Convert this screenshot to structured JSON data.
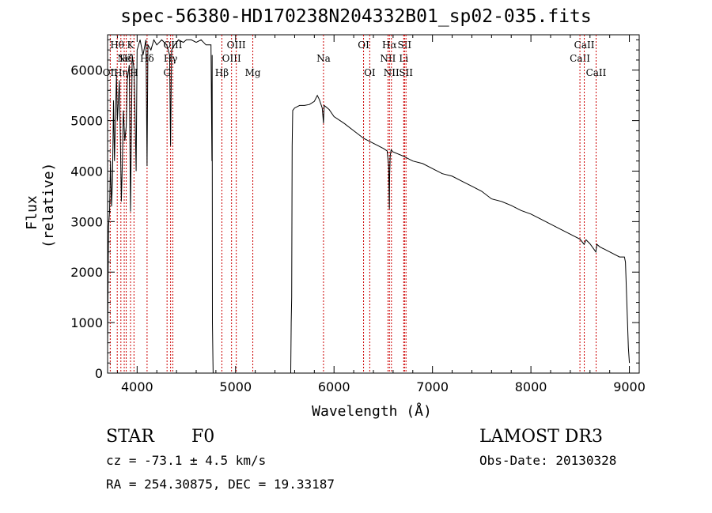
{
  "chart_data": {
    "type": "line",
    "title": "spec-56380-HD170238N204332B01_sp02-035.fits",
    "xlabel": "Wavelength (Å)",
    "ylabel": "Flux (relative)",
    "xlim": [
      3700,
      9100
    ],
    "ylim": [
      0,
      6700
    ],
    "xticks": [
      4000,
      5000,
      6000,
      7000,
      8000,
      9000
    ],
    "yticks": [
      0,
      1000,
      2000,
      3000,
      4000,
      5000,
      6000
    ],
    "series": [
      {
        "name": "flux",
        "x": [
          3700,
          3705,
          3710,
          3720,
          3730,
          3740,
          3750,
          3760,
          3770,
          3790,
          3800,
          3820,
          3830,
          3840,
          3850,
          3860,
          3875,
          3890,
          3900,
          3920,
          3933,
          3950,
          3970,
          3990,
          4000,
          4030,
          4060,
          4090,
          4101,
          4110,
          4140,
          4170,
          4200,
          4250,
          4300,
          4330,
          4340,
          4350,
          4380,
          4420,
          4470,
          4500,
          4550,
          4600,
          4650,
          4700,
          4750,
          4760,
          4762,
          4765,
          4770,
          4772,
          5560,
          5565,
          5570,
          5575,
          5580,
          5600,
          5650,
          5700,
          5750,
          5800,
          5830,
          5850,
          5880,
          5893,
          5896,
          5900,
          5950,
          6000,
          6100,
          6200,
          6300,
          6400,
          6500,
          6540,
          6555,
          6562,
          6565,
          6570,
          6580,
          6600,
          6700,
          6800,
          6900,
          7000,
          7100,
          7200,
          7300,
          7400,
          7500,
          7600,
          7700,
          7800,
          7900,
          8000,
          8100,
          8200,
          8300,
          8400,
          8500,
          8540,
          8560,
          8600,
          8660,
          8670,
          8700,
          8800,
          8900,
          8950,
          8960,
          8990,
          9000
        ],
        "y": [
          500,
          1800,
          2900,
          3200,
          4200,
          3300,
          3800,
          5400,
          4200,
          5900,
          5000,
          5800,
          4600,
          3400,
          4200,
          5200,
          4600,
          4900,
          5800,
          6100,
          3200,
          6300,
          6000,
          4000,
          6400,
          6600,
          6300,
          6600,
          4100,
          6500,
          6400,
          6600,
          6500,
          6600,
          6500,
          6300,
          4500,
          6400,
          6500,
          6600,
          6550,
          6600,
          6600,
          6550,
          6600,
          6500,
          6500,
          4200,
          6300,
          1000,
          200,
          0,
          0,
          1000,
          1500,
          4500,
          5200,
          5250,
          5300,
          5300,
          5320,
          5380,
          5500,
          5420,
          5250,
          4950,
          5120,
          5300,
          5220,
          5080,
          4950,
          4800,
          4650,
          4550,
          4450,
          4400,
          4100,
          3250,
          3900,
          4300,
          4420,
          4380,
          4300,
          4200,
          4150,
          4050,
          3950,
          3900,
          3800,
          3700,
          3600,
          3450,
          3400,
          3320,
          3220,
          3150,
          3050,
          2950,
          2850,
          2750,
          2650,
          2550,
          2640,
          2560,
          2400,
          2550,
          2500,
          2400,
          2300,
          2300,
          2200,
          500,
          200
        ]
      }
    ],
    "line_markers": [
      {
        "label": "Hθ",
        "x": 3798,
        "row": 1
      },
      {
        "label": "OII",
        "x": 3727,
        "row": 3
      },
      {
        "label": "Ne",
        "x": 3869,
        "row": 2
      },
      {
        "label": "K",
        "x": 3933,
        "row": 1
      },
      {
        "label": "Hη",
        "x": 3835,
        "row": 3
      },
      {
        "label": "H",
        "x": 3968,
        "row": 3
      },
      {
        "label": "Hζ",
        "x": 3889,
        "row": 2
      },
      {
        "label": "Hδ",
        "x": 4101,
        "row": 2
      },
      {
        "label": "OIII",
        "x": 4363,
        "row": 1
      },
      {
        "label": "G",
        "x": 4304,
        "row": 3
      },
      {
        "label": "Hγ",
        "x": 4340,
        "row": 2
      },
      {
        "label": "Hβ",
        "x": 4861,
        "row": 3
      },
      {
        "label": "OIII",
        "x": 4959,
        "row": 2
      },
      {
        "label": "OIII",
        "x": 5007,
        "row": 1
      },
      {
        "label": "Mg",
        "x": 5175,
        "row": 3
      },
      {
        "label": "Na",
        "x": 5893,
        "row": 2
      },
      {
        "label": "OI",
        "x": 6300,
        "row": 1
      },
      {
        "label": "OI",
        "x": 6363,
        "row": 3
      },
      {
        "label": "NII",
        "x": 6548,
        "row": 2
      },
      {
        "label": "Hα",
        "x": 6563,
        "row": 1
      },
      {
        "label": "NII",
        "x": 6583,
        "row": 3
      },
      {
        "label": "Li",
        "x": 6708,
        "row": 2
      },
      {
        "label": "SII",
        "x": 6716,
        "row": 1
      },
      {
        "label": "SII",
        "x": 6731,
        "row": 3
      },
      {
        "label": "CaII",
        "x": 8498,
        "row": 2
      },
      {
        "label": "CaII",
        "x": 8542,
        "row": 1
      },
      {
        "label": "CaII",
        "x": 8662,
        "row": 3
      }
    ],
    "marker_color": "#cc0000"
  },
  "info": {
    "object_class": "STAR",
    "subclass": "F0",
    "redshift": "cz = -73.1 ± 4.5 km/s",
    "coords": "RA = 254.30875, DEC =  19.33187",
    "survey": "LAMOST DR3",
    "obs_date": "Obs-Date: 20130328"
  }
}
